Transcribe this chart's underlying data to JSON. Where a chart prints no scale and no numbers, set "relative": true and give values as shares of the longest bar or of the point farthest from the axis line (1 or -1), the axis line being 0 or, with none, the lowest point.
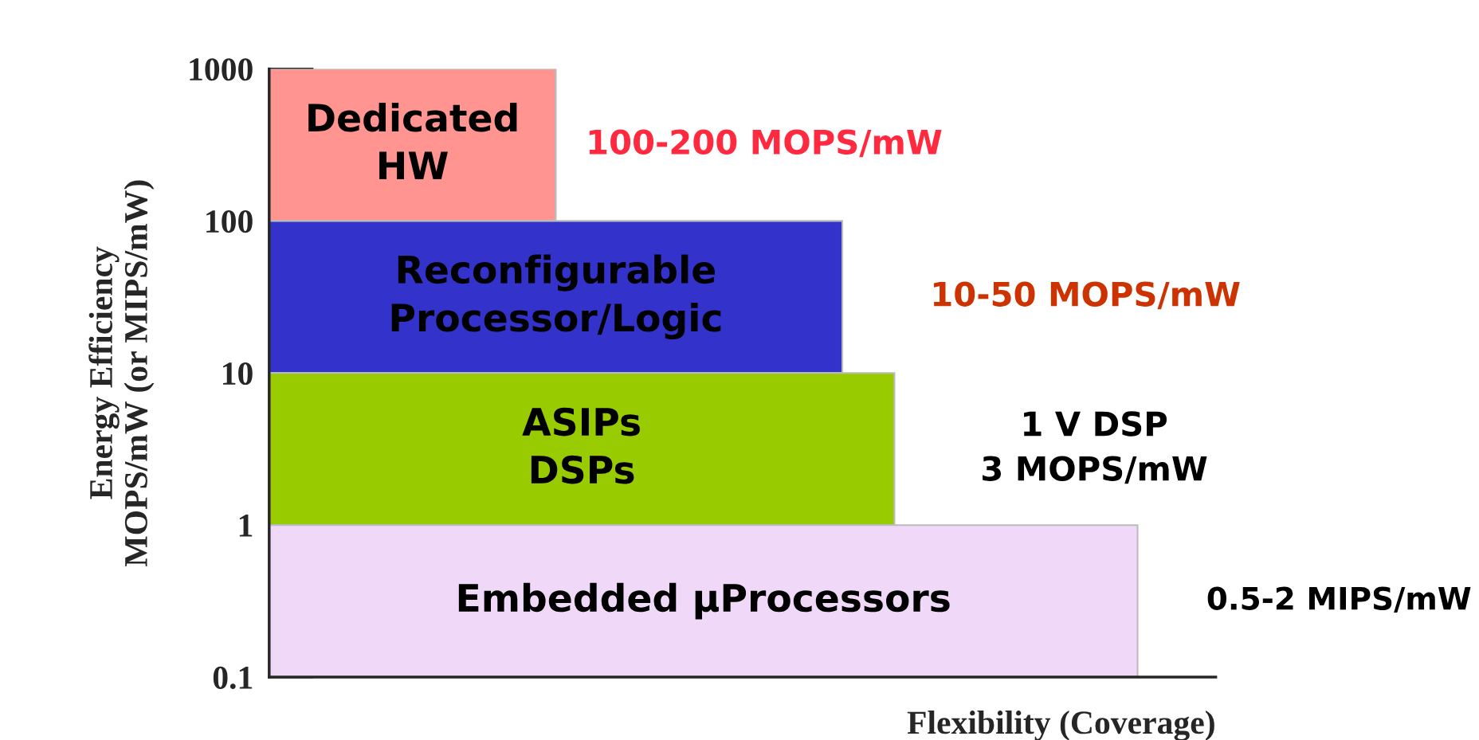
{
  "chart_data": {
    "type": "bar",
    "orientation": "horizontal",
    "relative": true,
    "x": [
      316,
      31.6,
      3.16,
      0.316
    ],
    "values": [
      0.33,
      0.66,
      0.72,
      1.0
    ],
    "colors": [
      "#ff9490",
      "#3333cc",
      "#99cc00",
      "#f0d8f8"
    ],
    "log": "y",
    "ylim": [
      0.1,
      1000
    ],
    "yticks": [
      0.1,
      1,
      10,
      100,
      1000
    ],
    "xlabel": "Flexibility (Coverage)",
    "ylabel": "Energy Efficiency\nMOPS/mW (or MIPS/mW)",
    "annotations": [
      "Dedicated\nHW",
      "Reconfigurable\nProcessor/Logic",
      "ASIPs\nDSPs",
      "Embedded μProcessors",
      "100-200 MOPS/mW",
      "10-50 MOPS/mW",
      "1 V DSP\n3 MOPS/mW",
      "0.5-2 MIPS/mW"
    ],
    "grid": false,
    "legend": false
  }
}
